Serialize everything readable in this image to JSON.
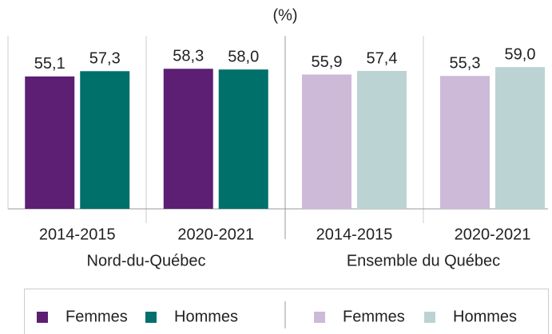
{
  "unit": "(%)",
  "chart_data": [
    {
      "type": "bar",
      "label": "Nord-du-Québec",
      "categories": [
        "2014-2015",
        "2020-2021"
      ],
      "series": [
        {
          "name": "Femmes",
          "color": "#5c1f73",
          "values": [
            55.1,
            58.3
          ],
          "value_labels": [
            "55,1",
            "58,3"
          ]
        },
        {
          "name": "Hommes",
          "color": "#00706a",
          "values": [
            57.3,
            58.0
          ],
          "value_labels": [
            "57,3",
            "58,0"
          ]
        }
      ],
      "ylim": [
        0,
        70
      ]
    },
    {
      "type": "bar",
      "label": "Ensemble du Québec",
      "categories": [
        "2014-2015",
        "2020-2021"
      ],
      "series": [
        {
          "name": "Femmes",
          "color": "#cdb9d8",
          "values": [
            55.9,
            55.3
          ],
          "value_labels": [
            "55,9",
            "55,3"
          ]
        },
        {
          "name": "Hommes",
          "color": "#bcd3d3",
          "values": [
            57.4,
            59.0
          ],
          "value_labels": [
            "57,4",
            "59,0"
          ]
        }
      ],
      "ylim": [
        0,
        70
      ]
    }
  ]
}
